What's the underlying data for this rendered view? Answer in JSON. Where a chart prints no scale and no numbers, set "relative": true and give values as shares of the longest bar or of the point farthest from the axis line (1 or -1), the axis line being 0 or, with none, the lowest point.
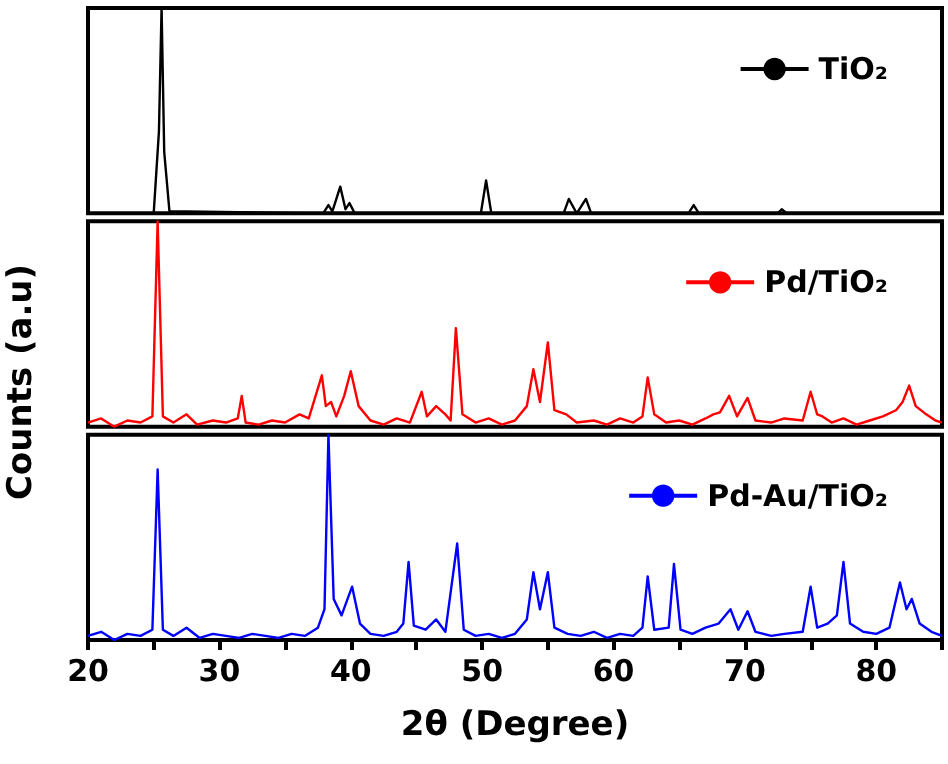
{
  "chart_data": [
    {
      "type": "line",
      "relative": true,
      "xlim": [
        20,
        85
      ],
      "tick_labels": false,
      "legend": "top right",
      "marker": "none",
      "grid": false,
      "series": [
        {
          "name": "TiO₂",
          "color": "#000000",
          "x": [
            20,
            25.0,
            25.4,
            25.6,
            25.8,
            26.2,
            37.9,
            38.3,
            38.6,
            39.2,
            39.6,
            39.9,
            40.3,
            49.9,
            50.3,
            50.7,
            56.2,
            56.6,
            57.2,
            57.9,
            58.3,
            65.7,
            66.1,
            66.5,
            72.5,
            72.8,
            73.2,
            74
          ],
          "values": [
            0.0,
            0.0,
            0.4,
            1.0,
            0.3,
            0.01,
            0.0,
            0.04,
            0.01,
            0.13,
            0.02,
            0.05,
            0.0,
            0.0,
            0.16,
            0.0,
            0.0,
            0.07,
            0.0,
            0.07,
            0.0,
            0.0,
            0.04,
            0.0,
            0.0,
            0.02,
            0.0,
            0.0
          ]
        }
      ]
    },
    {
      "type": "line",
      "relative": true,
      "xlim": [
        20,
        85
      ],
      "tick_labels": false,
      "legend": "top right",
      "marker": "none",
      "grid": false,
      "ylabel": "Counts (a.u)",
      "series": [
        {
          "name": "Pd/TiO₂",
          "color": "#ff0000",
          "x": [
            20,
            21,
            22,
            23,
            24,
            24.9,
            25.3,
            25.7,
            26.5,
            27.5,
            28.3,
            29.5,
            30.5,
            31.4,
            31.7,
            32.0,
            33,
            34,
            35,
            36.1,
            36.8,
            37.8,
            38.1,
            38.5,
            38.9,
            39.5,
            40.0,
            40.6,
            41.5,
            42.5,
            43.5,
            44.5,
            45.4,
            45.8,
            46.5,
            47.2,
            47.6,
            48.0,
            48.5,
            49.5,
            50.5,
            51.5,
            52.5,
            53.4,
            53.9,
            54.4,
            55.0,
            55.5,
            56.4,
            57.2,
            58.5,
            59.5,
            60.5,
            61.5,
            62.2,
            62.6,
            63.1,
            64,
            65,
            66,
            67,
            67.6,
            68.1,
            68.8,
            69.4,
            70.2,
            70.8,
            72,
            73,
            74.4,
            75.0,
            75.5,
            75.9,
            76.6,
            77.5,
            78.5,
            79.5,
            80.5,
            81.5,
            82.0,
            82.5,
            83.0,
            83.8,
            84.5,
            85
          ],
          "values": [
            0.02,
            0.04,
            0,
            0.03,
            0.02,
            0.05,
            1.0,
            0.05,
            0.02,
            0.06,
            0.01,
            0.03,
            0.02,
            0.04,
            0.15,
            0.02,
            0.01,
            0.03,
            0.02,
            0.06,
            0.04,
            0.25,
            0.1,
            0.12,
            0.05,
            0.15,
            0.27,
            0.1,
            0.03,
            0.01,
            0.04,
            0.02,
            0.17,
            0.05,
            0.1,
            0.06,
            0.03,
            0.48,
            0.06,
            0.02,
            0.04,
            0.01,
            0.03,
            0.1,
            0.28,
            0.12,
            0.41,
            0.08,
            0.06,
            0.02,
            0.03,
            0.01,
            0.04,
            0.02,
            0.05,
            0.24,
            0.06,
            0.02,
            0.03,
            0.01,
            0.04,
            0.06,
            0.07,
            0.15,
            0.05,
            0.14,
            0.03,
            0.02,
            0.04,
            0.03,
            0.17,
            0.06,
            0.05,
            0.02,
            0.04,
            0.01,
            0.03,
            0.05,
            0.08,
            0.12,
            0.2,
            0.1,
            0.06,
            0.03,
            0.02
          ]
        }
      ]
    },
    {
      "type": "line",
      "relative": true,
      "xlim": [
        20,
        85
      ],
      "xticks": [
        20,
        {
          "value": 25,
          "label": null
        },
        30,
        {
          "value": 35,
          "label": null
        },
        40,
        {
          "value": 45,
          "label": null
        },
        50,
        {
          "value": 55,
          "label": null
        },
        60,
        {
          "value": 65,
          "label": null
        },
        70,
        {
          "value": 75,
          "label": null
        },
        80,
        {
          "value": 85,
          "label": null
        }
      ],
      "tick_labels": "x",
      "legend": "top right",
      "marker": "none",
      "grid": false,
      "xlabel": "2θ (Degree)",
      "series": [
        {
          "name": "Pd-Au/TiO₂",
          "color": "#0000ff",
          "x": [
            20,
            21,
            22,
            23,
            24,
            24.9,
            25.3,
            25.7,
            26.5,
            27.5,
            28.5,
            29.5,
            30.5,
            31.5,
            32.5,
            33.5,
            34.5,
            35.5,
            36.5,
            37.5,
            38.0,
            38.3,
            38.7,
            39.3,
            40.1,
            40.7,
            41.5,
            42.5,
            43.5,
            44.0,
            44.4,
            44.8,
            45.7,
            46.5,
            47.2,
            48.1,
            48.6,
            49.5,
            50.5,
            51.5,
            52.5,
            53.4,
            53.9,
            54.4,
            55.0,
            55.5,
            56.5,
            57.5,
            58.5,
            59.5,
            60.5,
            61.5,
            62.2,
            62.6,
            63.1,
            64.2,
            64.6,
            65.1,
            66,
            67,
            68,
            68.9,
            69.5,
            70.2,
            70.8,
            72,
            73,
            74.4,
            75.0,
            75.5,
            76.3,
            77.0,
            77.5,
            78.0,
            79,
            80,
            81,
            81.8,
            82.3,
            82.7,
            83.3,
            84.2,
            85
          ],
          "values": [
            0.02,
            0.04,
            0,
            0.03,
            0.02,
            0.05,
            0.83,
            0.05,
            0.02,
            0.06,
            0.01,
            0.03,
            0.02,
            0.01,
            0.03,
            0.02,
            0.01,
            0.03,
            0.02,
            0.06,
            0.15,
            1.0,
            0.2,
            0.12,
            0.26,
            0.08,
            0.03,
            0.02,
            0.04,
            0.08,
            0.38,
            0.07,
            0.05,
            0.1,
            0.04,
            0.47,
            0.05,
            0.02,
            0.03,
            0.01,
            0.03,
            0.1,
            0.33,
            0.15,
            0.33,
            0.06,
            0.03,
            0.02,
            0.04,
            0.01,
            0.03,
            0.02,
            0.06,
            0.31,
            0.05,
            0.06,
            0.37,
            0.05,
            0.03,
            0.06,
            0.08,
            0.15,
            0.05,
            0.14,
            0.04,
            0.02,
            0.03,
            0.04,
            0.26,
            0.06,
            0.08,
            0.12,
            0.38,
            0.08,
            0.04,
            0.03,
            0.06,
            0.28,
            0.15,
            0.2,
            0.08,
            0.04,
            0.02
          ]
        }
      ]
    }
  ]
}
